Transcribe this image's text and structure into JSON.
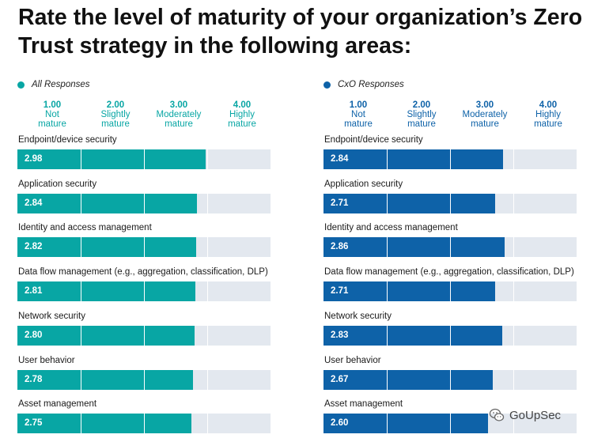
{
  "title": "Rate the level of maturity of your organization’s Zero Trust strategy in the following areas:",
  "colors": {
    "all_responses": "#08a6a4",
    "cxo_responses": "#0e62a8",
    "track": "#e3e8ef"
  },
  "scale": [
    {
      "value": "1.00",
      "label_lines": [
        "Not",
        "mature"
      ]
    },
    {
      "value": "2.00",
      "label_lines": [
        "Slightly",
        "mature"
      ]
    },
    {
      "value": "3.00",
      "label_lines": [
        "Moderately",
        "mature"
      ]
    },
    {
      "value": "4.00",
      "label_lines": [
        "Highly",
        "mature"
      ]
    }
  ],
  "chart_data": [
    {
      "type": "bar",
      "orientation": "horizontal",
      "series_name": "All Responses",
      "color": "#08a6a4",
      "xlim": [
        0,
        4
      ],
      "categories": [
        "Endpoint/device security",
        "Application security",
        "Identity and access management",
        "Data flow management (e.g., aggregation, classification, DLP)",
        "Network security",
        "User behavior",
        "Asset management"
      ],
      "values": [
        2.98,
        2.84,
        2.82,
        2.81,
        2.8,
        2.78,
        2.75
      ],
      "value_labels": [
        "2.98",
        "2.84",
        "2.82",
        "2.81",
        "2.80",
        "2.78",
        "2.75"
      ],
      "grid": true
    },
    {
      "type": "bar",
      "orientation": "horizontal",
      "series_name": "CxO Responses",
      "color": "#0e62a8",
      "xlim": [
        0,
        4
      ],
      "categories": [
        "Endpoint/device security",
        "Application security",
        "Identity and access management",
        "Data flow management (e.g., aggregation, classification, DLP)",
        "Network security",
        "User behavior",
        "Asset management"
      ],
      "values": [
        2.84,
        2.71,
        2.86,
        2.71,
        2.83,
        2.67,
        2.6
      ],
      "value_labels": [
        "2.84",
        "2.71",
        "2.86",
        "2.71",
        "2.83",
        "2.67",
        "2.60"
      ],
      "grid": true
    }
  ],
  "watermark": {
    "text": "GoUpSec",
    "icon": "wechat-logo-icon"
  }
}
